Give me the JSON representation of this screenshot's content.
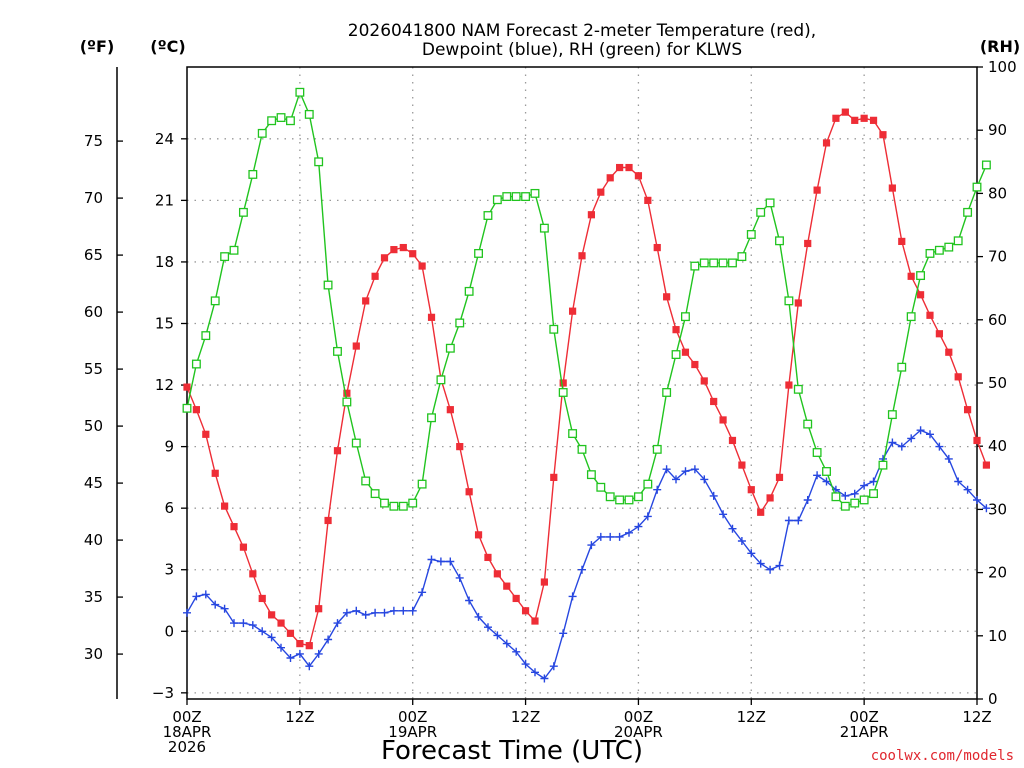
{
  "chart_data": {
    "type": "line",
    "title_lines": [
      "2026041800 NAM Forecast 2-meter Temperature (red),",
      "Dewpoint (blue), RH (green) for KLWS"
    ],
    "xlabel": "Forecast Time (UTC)",
    "credit": "coolwx.com/models",
    "units": {
      "fahrenheit": "(ºF)",
      "celsius": "(ºC)",
      "rh": "(RH)"
    },
    "x_range": [
      0,
      84
    ],
    "x_ticks": [
      {
        "x": 0,
        "lines": [
          "00Z",
          "18APR",
          "2026"
        ]
      },
      {
        "x": 12,
        "lines": [
          "12Z"
        ]
      },
      {
        "x": 24,
        "lines": [
          "00Z",
          "19APR"
        ]
      },
      {
        "x": 36,
        "lines": [
          "12Z"
        ]
      },
      {
        "x": 48,
        "lines": [
          "00Z",
          "20APR"
        ]
      },
      {
        "x": 60,
        "lines": [
          "12Z"
        ]
      },
      {
        "x": 72,
        "lines": [
          "00Z",
          "21APR"
        ]
      },
      {
        "x": 84,
        "lines": [
          "12Z"
        ]
      }
    ],
    "y_celsius_range": [
      -3.3,
      27.5
    ],
    "y_celsius_ticks": [
      -3,
      0,
      3,
      6,
      9,
      12,
      15,
      18,
      21,
      24
    ],
    "y_fahrenheit_ticks": [
      30,
      35,
      40,
      45,
      50,
      55,
      60,
      65,
      70,
      75
    ],
    "y_rh_range": [
      0,
      100
    ],
    "y_rh_ticks": [
      0,
      10,
      20,
      30,
      40,
      50,
      60,
      70,
      80,
      90,
      100
    ],
    "grid": true,
    "series": [
      {
        "name": "Temperature",
        "unit": "C",
        "color": "#ee2d36",
        "marker": "filled-square",
        "values": [
          11.9,
          10.8,
          9.6,
          7.7,
          6.1,
          5.1,
          4.1,
          2.8,
          1.6,
          0.8,
          0.4,
          -0.1,
          -0.6,
          -0.7,
          1.1,
          5.4,
          8.8,
          11.6,
          13.9,
          16.1,
          17.3,
          18.2,
          18.6,
          18.7,
          18.4,
          17.8,
          15.3,
          12.3,
          10.8,
          9.0,
          6.8,
          4.7,
          3.6,
          2.8,
          2.2,
          1.6,
          1.0,
          0.5,
          2.4,
          7.5,
          12.1,
          15.6,
          18.3,
          20.3,
          21.4,
          22.1,
          22.6,
          22.6,
          22.2,
          21.0,
          18.7,
          16.3,
          14.7,
          13.6,
          13.0,
          12.2,
          11.2,
          10.3,
          9.3,
          8.1,
          6.9,
          5.8,
          6.5,
          7.5,
          12.0,
          16.0,
          18.9,
          21.5,
          23.8,
          25.0,
          25.3,
          24.9,
          25.0,
          24.9,
          24.2,
          21.6,
          19.0,
          17.3,
          16.4,
          15.4,
          14.5,
          13.6,
          12.4,
          10.8,
          9.3,
          8.1
        ]
      },
      {
        "name": "Dewpoint",
        "unit": "C",
        "color": "#2747e0",
        "marker": "plus",
        "values": [
          0.9,
          1.7,
          1.8,
          1.3,
          1.1,
          0.4,
          0.4,
          0.3,
          0.0,
          -0.3,
          -0.8,
          -1.3,
          -1.1,
          -1.7,
          -1.1,
          -0.4,
          0.4,
          0.9,
          1.0,
          0.8,
          0.9,
          0.9,
          1.0,
          1.0,
          1.0,
          1.9,
          3.5,
          3.4,
          3.4,
          2.6,
          1.5,
          0.7,
          0.2,
          -0.2,
          -0.6,
          -1.0,
          -1.6,
          -2.0,
          -2.3,
          -1.7,
          -0.1,
          1.7,
          3.0,
          4.2,
          4.6,
          4.6,
          4.6,
          4.8,
          5.1,
          5.6,
          6.9,
          7.9,
          7.4,
          7.8,
          7.9,
          7.4,
          6.6,
          5.7,
          5.0,
          4.4,
          3.8,
          3.3,
          3.0,
          3.2,
          5.4,
          5.4,
          6.4,
          7.6,
          7.3,
          6.9,
          6.6,
          6.7,
          7.1,
          7.3,
          8.4,
          9.2,
          9.0,
          9.4,
          9.8,
          9.6,
          9.0,
          8.4,
          7.3,
          6.9,
          6.4,
          6.0
        ]
      },
      {
        "name": "RH",
        "unit": "%",
        "color": "#21c41f",
        "marker": "open-square",
        "values": [
          46.0,
          53.0,
          57.5,
          63.0,
          70.0,
          71.0,
          77.0,
          83.0,
          89.5,
          91.5,
          92.0,
          91.5,
          96.0,
          92.5,
          85.0,
          65.5,
          55.0,
          47.0,
          40.5,
          34.5,
          32.5,
          31.0,
          30.5,
          30.5,
          31.0,
          34.0,
          44.5,
          50.5,
          55.5,
          59.5,
          64.5,
          70.5,
          76.5,
          79.0,
          79.5,
          79.5,
          79.5,
          80.0,
          74.5,
          58.5,
          48.5,
          42.0,
          39.5,
          35.5,
          33.5,
          32.0,
          31.5,
          31.5,
          32.0,
          34.0,
          39.5,
          48.5,
          54.5,
          60.5,
          68.5,
          69.0,
          69.0,
          69.0,
          69.0,
          70.0,
          73.5,
          77.0,
          78.5,
          72.5,
          63.0,
          49.0,
          43.5,
          39.0,
          36.0,
          32.0,
          30.5,
          31.0,
          31.5,
          32.5,
          37.0,
          45.0,
          52.5,
          60.5,
          67.0,
          70.5,
          71.0,
          71.5,
          72.5,
          77.0,
          81.0,
          84.5
        ]
      }
    ]
  }
}
